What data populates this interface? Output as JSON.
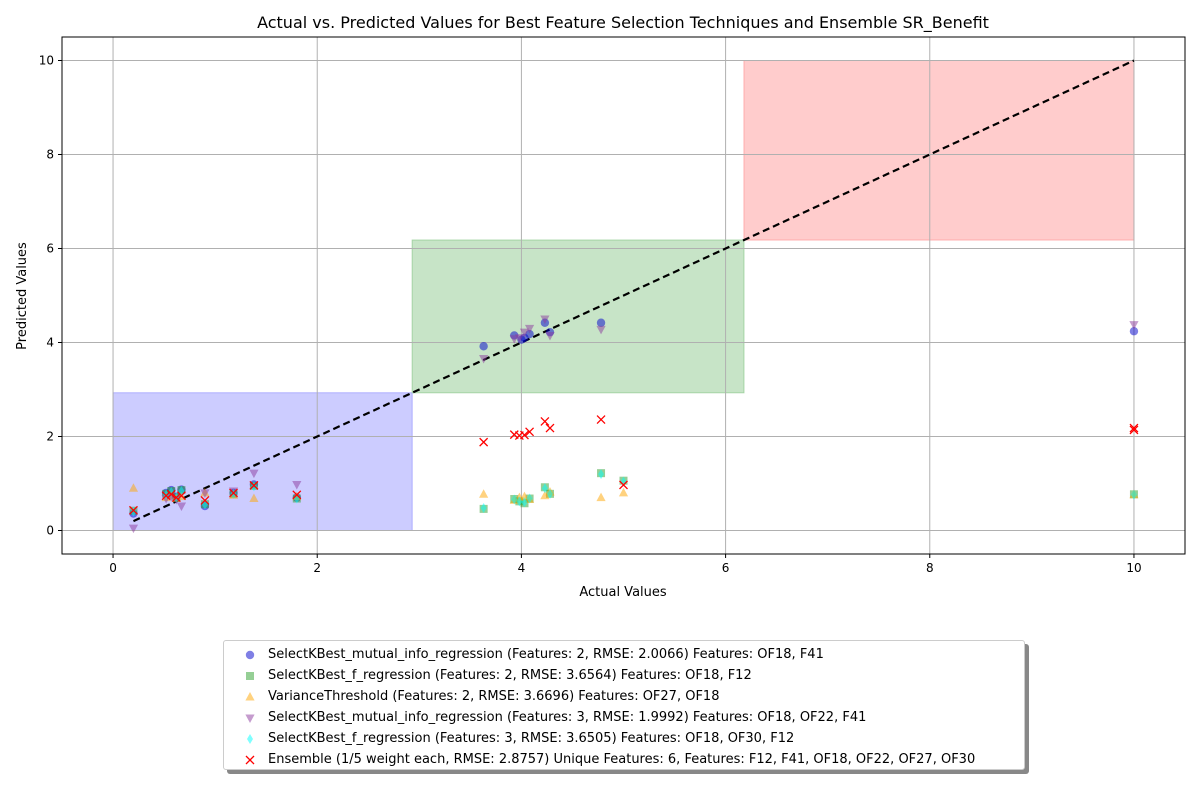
{
  "chart_data": {
    "type": "scatter",
    "title": "Actual vs. Predicted Values for Best Feature Selection Techniques and Ensemble SR_Benefit",
    "xlabel": "Actual Values",
    "ylabel": "Predicted Values",
    "xlim": [
      -0.5,
      10.5
    ],
    "ylim": [
      -0.5,
      10.5
    ],
    "xticks": [
      "0",
      "2",
      "4",
      "6",
      "8",
      "10"
    ],
    "yticks": [
      "0",
      "2",
      "4",
      "6",
      "8",
      "10"
    ],
    "grid": true,
    "legend_position": "bottom-center",
    "identity_line": {
      "from": [
        0.2,
        0.2
      ],
      "to": [
        10,
        10
      ],
      "color": "#000000",
      "style": "dashed"
    },
    "regions": [
      {
        "x": [
          0,
          2.93
        ],
        "y": [
          0,
          2.93
        ],
        "color": "#9999ff"
      },
      {
        "x": [
          2.93,
          6.18
        ],
        "y": [
          2.93,
          6.18
        ],
        "color": "#8fc98f"
      },
      {
        "x": [
          6.18,
          10
        ],
        "y": [
          6.18,
          10
        ],
        "color": "#ff9999"
      }
    ],
    "series": [
      {
        "name": "SelectKBest_mutual_info_regression (Features: 2, RMSE: 2.0066) Features: OF18, F41",
        "marker": "circle",
        "color": "#0000cc",
        "points": [
          [
            0.2,
            0.36
          ],
          [
            0.52,
            0.8
          ],
          [
            0.57,
            0.86
          ],
          [
            0.62,
            0.72
          ],
          [
            0.67,
            0.87
          ],
          [
            0.9,
            0.52
          ],
          [
            1.18,
            0.8
          ],
          [
            1.38,
            0.98
          ],
          [
            1.8,
            0.7
          ],
          [
            3.63,
            3.92
          ],
          [
            3.93,
            4.15
          ],
          [
            4.0,
            4.06
          ],
          [
            4.03,
            4.1
          ],
          [
            4.08,
            4.18
          ],
          [
            4.23,
            4.42
          ],
          [
            4.28,
            4.22
          ],
          [
            4.78,
            4.42
          ],
          [
            10.0,
            4.24
          ]
        ]
      },
      {
        "name": "SelectKBest_f_regression (Features: 2, RMSE: 3.6564) Features: OF18, F12",
        "marker": "square",
        "color": "#2ca02c",
        "points": [
          [
            0.2,
            0.42
          ],
          [
            0.52,
            0.78
          ],
          [
            0.57,
            0.84
          ],
          [
            0.62,
            0.7
          ],
          [
            0.67,
            0.86
          ],
          [
            0.9,
            0.56
          ],
          [
            1.18,
            0.78
          ],
          [
            1.38,
            0.95
          ],
          [
            1.8,
            0.68
          ],
          [
            3.63,
            0.46
          ],
          [
            3.93,
            0.67
          ],
          [
            3.98,
            0.62
          ],
          [
            4.03,
            0.58
          ],
          [
            4.08,
            0.68
          ],
          [
            4.23,
            0.92
          ],
          [
            4.28,
            0.78
          ],
          [
            4.78,
            1.22
          ],
          [
            5.0,
            1.06
          ],
          [
            10.0,
            0.77
          ]
        ]
      },
      {
        "name": "VarianceThreshold (Features: 2, RMSE: 3.6696) Features: OF27, OF18",
        "marker": "triangle-up",
        "color": "#ffa500",
        "points": [
          [
            0.2,
            0.9
          ],
          [
            0.52,
            0.7
          ],
          [
            0.57,
            0.74
          ],
          [
            0.62,
            0.68
          ],
          [
            0.67,
            0.72
          ],
          [
            0.9,
            0.8
          ],
          [
            1.18,
            0.75
          ],
          [
            1.38,
            0.68
          ],
          [
            1.8,
            0.72
          ],
          [
            3.63,
            0.77
          ],
          [
            3.93,
            0.64
          ],
          [
            3.98,
            0.7
          ],
          [
            4.03,
            0.72
          ],
          [
            4.08,
            0.66
          ],
          [
            4.23,
            0.74
          ],
          [
            4.28,
            0.82
          ],
          [
            4.78,
            0.7
          ],
          [
            5.0,
            0.8
          ],
          [
            10.0,
            0.76
          ]
        ]
      },
      {
        "name": "SelectKBest_mutual_info_regression (Features: 3, RMSE: 1.9992) Features: OF18, OF22, F41",
        "marker": "triangle-down",
        "color": "#8b3a9e",
        "points": [
          [
            0.2,
            0.05
          ],
          [
            0.52,
            0.68
          ],
          [
            0.57,
            0.72
          ],
          [
            0.62,
            0.66
          ],
          [
            0.67,
            0.52
          ],
          [
            0.9,
            0.8
          ],
          [
            1.18,
            0.84
          ],
          [
            1.38,
            1.22
          ],
          [
            1.8,
            0.98
          ],
          [
            3.63,
            3.66
          ],
          [
            3.93,
            4.08
          ],
          [
            3.98,
            4.1
          ],
          [
            4.03,
            4.22
          ],
          [
            4.08,
            4.3
          ],
          [
            4.23,
            4.5
          ],
          [
            4.28,
            4.15
          ],
          [
            4.78,
            4.28
          ],
          [
            10.0,
            4.38
          ]
        ]
      },
      {
        "name": "SelectKBest_f_regression (Features: 3, RMSE: 3.6505) Features: OF18, OF30, F12",
        "marker": "diamond",
        "color": "#00ffff",
        "points": [
          [
            0.2,
            0.4
          ],
          [
            0.52,
            0.76
          ],
          [
            0.57,
            0.82
          ],
          [
            0.62,
            0.7
          ],
          [
            0.67,
            0.84
          ],
          [
            0.9,
            0.55
          ],
          [
            1.18,
            0.78
          ],
          [
            1.38,
            0.94
          ],
          [
            1.8,
            0.68
          ],
          [
            3.63,
            0.48
          ],
          [
            3.93,
            0.66
          ],
          [
            3.98,
            0.62
          ],
          [
            4.03,
            0.6
          ],
          [
            4.08,
            0.68
          ],
          [
            4.23,
            0.9
          ],
          [
            4.28,
            0.78
          ],
          [
            4.78,
            1.2
          ],
          [
            5.0,
            1.04
          ],
          [
            10.0,
            0.76
          ]
        ]
      },
      {
        "name": "Ensemble (1/5 weight each, RMSE: 2.8757) Unique Features: 6, Features: F12, F41, OF18, OF22, OF27, OF30",
        "marker": "x",
        "color": "#ff0000",
        "points": [
          [
            0.2,
            0.43
          ],
          [
            0.52,
            0.74
          ],
          [
            0.57,
            0.77
          ],
          [
            0.62,
            0.7
          ],
          [
            0.67,
            0.74
          ],
          [
            0.9,
            0.64
          ],
          [
            1.18,
            0.8
          ],
          [
            1.38,
            0.96
          ],
          [
            1.8,
            0.76
          ],
          [
            3.63,
            1.88
          ],
          [
            3.93,
            2.04
          ],
          [
            3.98,
            2.02
          ],
          [
            4.03,
            2.03
          ],
          [
            4.08,
            2.1
          ],
          [
            4.23,
            2.32
          ],
          [
            4.28,
            2.18
          ],
          [
            4.78,
            2.36
          ],
          [
            5.0,
            0.97
          ],
          [
            10.0,
            2.18
          ],
          [
            10.0,
            2.14
          ]
        ]
      }
    ]
  }
}
